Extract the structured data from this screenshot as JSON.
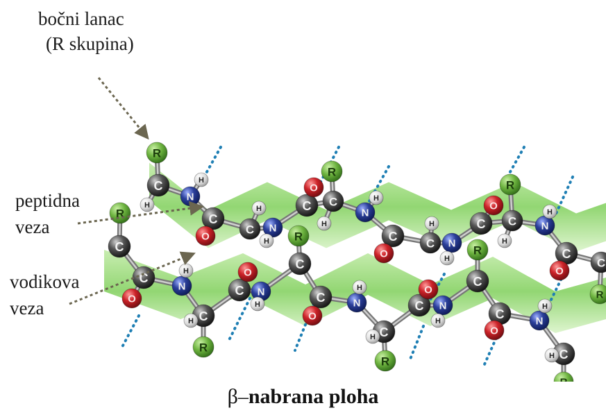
{
  "labels": {
    "side_chain_line1": "bočni lanac",
    "side_chain_line2": "(R skupina)",
    "peptide_line1": "peptidna",
    "peptide_line2": "veza",
    "hbond_line1": "vodikova",
    "hbond_line2": "veza"
  },
  "caption": {
    "greek": "β–",
    "text": "nabrana ploha"
  },
  "atom_symbols": {
    "carbon": "C",
    "nitrogen": "N",
    "oxygen": "O",
    "hydrogen": "H",
    "side_chain": "R"
  },
  "colors": {
    "carbon": "#3a3a3a",
    "nitrogen": "#2a3d8f",
    "oxygen": "#c8242a",
    "hydrogen": "#e6e6e6",
    "side_chain": "#6db33f",
    "ribbon": "#8fd36b",
    "hbond_dots": "#1f7fb4",
    "arrow": "#6b6650"
  }
}
